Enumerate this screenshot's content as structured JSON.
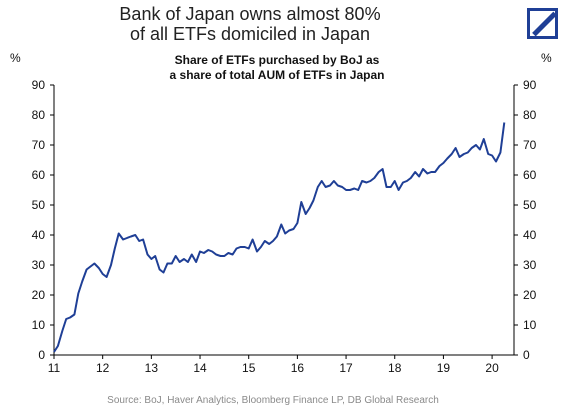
{
  "header": {
    "title_line1": "Bank of Japan owns almost 80%",
    "title_line2": "of all ETFs domiciled in Japan",
    "logo": "deutsche-bank-slash-logo",
    "brand_color": "#1f3f96"
  },
  "chart_data": {
    "type": "line",
    "title": "",
    "subtitle_line1": "Share of ETFs purchased by BoJ as",
    "subtitle_line2": "a share of total AUM of ETFs in Japan",
    "left_unit": "%",
    "right_unit": "%",
    "xlabel": "",
    "ylabel": "",
    "xlim": [
      2011,
      2020.45
    ],
    "ylim": [
      0,
      90
    ],
    "x_ticks": [
      "11",
      "12",
      "13",
      "14",
      "15",
      "16",
      "17",
      "18",
      "19",
      "20"
    ],
    "y_ticks": [
      "0",
      "10",
      "20",
      "30",
      "40",
      "50",
      "60",
      "70",
      "80",
      "90"
    ],
    "grid": false,
    "legend": "none",
    "line_color": "#1f3f96",
    "series": [
      {
        "x": [
          2011.0,
          2011.08,
          2011.17,
          2011.25,
          2011.33,
          2011.42,
          2011.5,
          2011.58,
          2011.67,
          2011.75,
          2011.83,
          2011.92,
          2012.0,
          2012.08,
          2012.17,
          2012.25,
          2012.33,
          2012.42,
          2012.5,
          2012.58,
          2012.67,
          2012.75,
          2012.83,
          2012.92,
          2013.0,
          2013.08,
          2013.17,
          2013.25,
          2013.33,
          2013.42,
          2013.5,
          2013.58,
          2013.67,
          2013.75,
          2013.83,
          2013.92,
          2014.0,
          2014.08,
          2014.17,
          2014.25,
          2014.33,
          2014.42,
          2014.5,
          2014.58,
          2014.67,
          2014.75,
          2014.83,
          2014.92,
          2015.0,
          2015.08,
          2015.17,
          2015.25,
          2015.33,
          2015.42,
          2015.5,
          2015.58,
          2015.67,
          2015.75,
          2015.83,
          2015.92,
          2016.0,
          2016.08,
          2016.17,
          2016.25,
          2016.33,
          2016.42,
          2016.5,
          2016.58,
          2016.67,
          2016.75,
          2016.83,
          2016.92,
          2017.0,
          2017.08,
          2017.17,
          2017.25,
          2017.33,
          2017.42,
          2017.5,
          2017.58,
          2017.67,
          2017.75,
          2017.83,
          2017.92,
          2018.0,
          2018.08,
          2018.17,
          2018.25,
          2018.33,
          2018.42,
          2018.5,
          2018.58,
          2018.67,
          2018.75,
          2018.83,
          2018.92,
          2019.0,
          2019.08,
          2019.17,
          2019.25,
          2019.33,
          2019.42,
          2019.5,
          2019.58,
          2019.67,
          2019.75,
          2019.83,
          2019.92,
          2020.0,
          2020.08,
          2020.17,
          2020.25
        ],
        "values": [
          1,
          3,
          8,
          12,
          12.5,
          13.5,
          20.5,
          24.5,
          28.5,
          29.5,
          30.5,
          29,
          27,
          26,
          30,
          35.5,
          40.5,
          38.5,
          39,
          39.5,
          40,
          38,
          38.5,
          33.5,
          32,
          33,
          28.5,
          27.5,
          30.5,
          30.5,
          33,
          31,
          32,
          31,
          33.5,
          31,
          34.5,
          34,
          35,
          34.5,
          33.5,
          33,
          33,
          34,
          33.5,
          35.5,
          36,
          36,
          35.5,
          38.5,
          34.5,
          36,
          38,
          37,
          38,
          39.5,
          43.5,
          40.5,
          41.5,
          42,
          44,
          51,
          47,
          49,
          51.5,
          56,
          58,
          56,
          56.5,
          58,
          56.5,
          56,
          55,
          55,
          55.5,
          55,
          58,
          57.5,
          58,
          59,
          61,
          62,
          56,
          56,
          58,
          55,
          57.5,
          58,
          59,
          61,
          59.5,
          62,
          60.5,
          61,
          61,
          63,
          64,
          65.5,
          67,
          69,
          66,
          67,
          67.5,
          69,
          70,
          68.5,
          72,
          67,
          66.5,
          64.5,
          67.5,
          77.5
        ]
      }
    ],
    "source": "Source: BoJ, Haver Analytics, Bloomberg Finance LP, DB Global Research"
  }
}
